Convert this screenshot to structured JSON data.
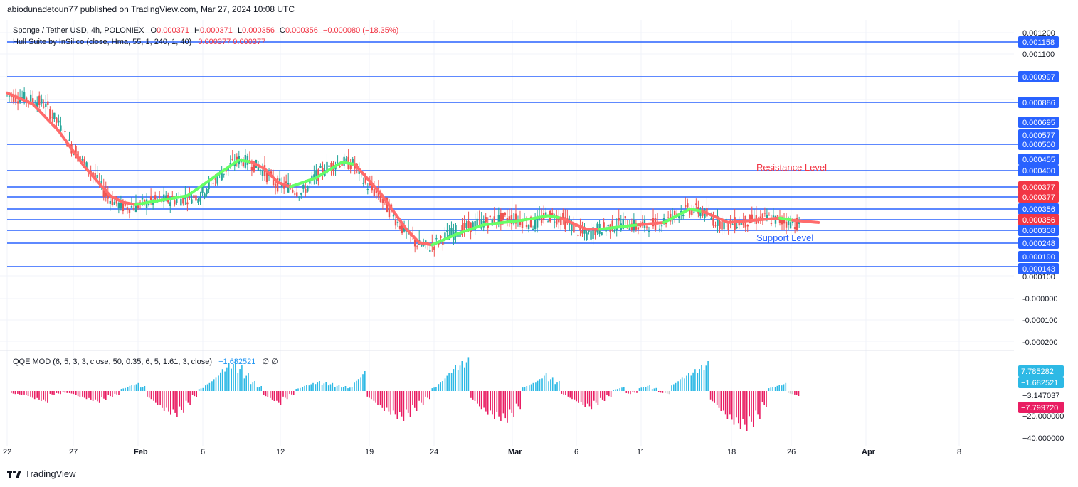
{
  "header": {
    "published_line": "abiodunadetoun77 published on TradingView.com, Mar 27, 2024 10:08 UTC"
  },
  "legend": {
    "symbol_line": "Sponge / Tether USD, 4h, POLONIEX",
    "ohlc": [
      {
        "label": "O",
        "value": "0.000371"
      },
      {
        "label": "H",
        "value": "0.000371"
      },
      {
        "label": "L",
        "value": "0.000356"
      },
      {
        "label": "C",
        "value": "0.000356"
      }
    ],
    "change": "−0.000080 (−18.35%)",
    "indicator_line": "Hull Suite by InSilico (close, Hma, 55, 1, 240, 1, 40)",
    "indicator_values": "0.000377  0.000377",
    "qqe_line": "QQE MOD (6, 5, 3, 3, close, 50, 0.35, 6, 5, 1.61, 3, close)",
    "qqe_value": "−1.682521",
    "qqe_extra": "∅  ∅"
  },
  "annotations": {
    "resistance": "Resistance Level",
    "support": "Support Level"
  },
  "colors": {
    "hline": "#2962ff",
    "bull": "#26a69a",
    "bear": "#ef5350",
    "hull_up": "#66ff66",
    "hull_down": "#ff6b6b",
    "qqe_up": "#2db9e5",
    "qqe_down": "#e91e63",
    "qqe_neutral": "#c8c8c8",
    "legend_red": "#f23645"
  },
  "footer": {
    "brand": "TradingView"
  },
  "chart_data": {
    "type": "candlestick",
    "x_tick_labels": [
      "22",
      "27",
      "Feb",
      "6",
      "12",
      "19",
      "24",
      "Mar",
      "6",
      "11",
      "18",
      "26",
      "Apr",
      "8"
    ],
    "price_axis_ticks": [
      "0.001200",
      "0.001100",
      "0.000100",
      "-0.000000",
      "-0.000100",
      "-0.000200"
    ],
    "horizontal_levels": [
      "0.001158",
      "0.000997",
      "0.000886",
      "0.000695",
      "0.000577",
      "0.000500",
      "0.000455",
      "0.000400",
      "0.000377",
      "0.000377",
      "0.000356",
      "0.000356",
      "0.000308",
      "0.000248",
      "0.000190",
      "0.000143"
    ],
    "highlighted_levels": [
      "0.000377",
      "0.000377",
      "0.000356"
    ],
    "price_series": [
      {
        "d": 0,
        "p": 0.00092
      },
      {
        "d": 2,
        "p": 0.0009
      },
      {
        "d": 3,
        "p": 0.00088
      },
      {
        "d": 4,
        "p": 0.0008
      },
      {
        "d": 5,
        "p": 0.0007
      },
      {
        "d": 6,
        "p": 0.00062
      },
      {
        "d": 7,
        "p": 0.00055
      },
      {
        "d": 8,
        "p": 0.00046
      },
      {
        "d": 9,
        "p": 0.00042
      },
      {
        "d": 10,
        "p": 0.00042
      },
      {
        "d": 11,
        "p": 0.00044
      },
      {
        "d": 12,
        "p": 0.00045
      },
      {
        "d": 13,
        "p": 0.00045
      },
      {
        "d": 14,
        "p": 0.00046
      },
      {
        "d": 15,
        "p": 0.00047
      },
      {
        "d": 16,
        "p": 0.00053
      },
      {
        "d": 17,
        "p": 0.00058
      },
      {
        "d": 18,
        "p": 0.00063
      },
      {
        "d": 19,
        "p": 0.00062
      },
      {
        "d": 20,
        "p": 0.00058
      },
      {
        "d": 21,
        "p": 0.00052
      },
      {
        "d": 22,
        "p": 0.00051
      },
      {
        "d": 23,
        "p": 0.00048
      },
      {
        "d": 24,
        "p": 0.00055
      },
      {
        "d": 25,
        "p": 0.0006
      },
      {
        "d": 26,
        "p": 0.00062
      },
      {
        "d": 27,
        "p": 0.00061
      },
      {
        "d": 28,
        "p": 0.00052
      },
      {
        "d": 29,
        "p": 0.00047
      },
      {
        "d": 30,
        "p": 0.00039
      },
      {
        "d": 31,
        "p": 0.00031
      },
      {
        "d": 32,
        "p": 0.00025
      },
      {
        "d": 33,
        "p": 0.00024
      },
      {
        "d": 34,
        "p": 0.00028
      },
      {
        "d": 35,
        "p": 0.00031
      },
      {
        "d": 36,
        "p": 0.00033
      },
      {
        "d": 37,
        "p": 0.00035
      },
      {
        "d": 38,
        "p": 0.00036
      },
      {
        "d": 39,
        "p": 0.00037
      },
      {
        "d": 40,
        "p": 0.00036
      },
      {
        "d": 41,
        "p": 0.00034
      },
      {
        "d": 42,
        "p": 0.00038
      },
      {
        "d": 43,
        "p": 0.00037
      },
      {
        "d": 44,
        "p": 0.00033
      },
      {
        "d": 45,
        "p": 0.00029
      },
      {
        "d": 46,
        "p": 0.00032
      },
      {
        "d": 47,
        "p": 0.00033
      },
      {
        "d": 48,
        "p": 0.00035
      },
      {
        "d": 49,
        "p": 0.00033
      },
      {
        "d": 50,
        "p": 0.00034
      },
      {
        "d": 51,
        "p": 0.00035
      },
      {
        "d": 52,
        "p": 0.00039
      },
      {
        "d": 53,
        "p": 0.00041
      },
      {
        "d": 54,
        "p": 0.0004
      },
      {
        "d": 55,
        "p": 0.00036
      },
      {
        "d": 56,
        "p": 0.00034
      },
      {
        "d": 57,
        "p": 0.00035
      },
      {
        "d": 58,
        "p": 0.00036
      },
      {
        "d": 59,
        "p": 0.00037
      },
      {
        "d": 60,
        "p": 0.00036
      },
      {
        "d": 61,
        "p": 0.00035
      },
      {
        "d": 62,
        "p": 0.00034
      },
      {
        "d": 63,
        "p": 0.00036
      }
    ],
    "hull_series": [
      {
        "d": 0,
        "p": 0.00093,
        "dir": "down"
      },
      {
        "d": 2,
        "p": 0.00088,
        "dir": "down"
      },
      {
        "d": 4,
        "p": 0.00076,
        "dir": "down"
      },
      {
        "d": 6,
        "p": 0.0006,
        "dir": "down"
      },
      {
        "d": 8,
        "p": 0.00047,
        "dir": "down"
      },
      {
        "d": 9,
        "p": 0.00044,
        "dir": "down"
      },
      {
        "d": 10,
        "p": 0.00043,
        "dir": "up"
      },
      {
        "d": 12,
        "p": 0.00045,
        "dir": "up"
      },
      {
        "d": 14,
        "p": 0.00047,
        "dir": "up"
      },
      {
        "d": 16,
        "p": 0.00055,
        "dir": "up"
      },
      {
        "d": 18,
        "p": 0.00063,
        "dir": "up"
      },
      {
        "d": 19,
        "p": 0.00062,
        "dir": "down"
      },
      {
        "d": 20,
        "p": 0.00059,
        "dir": "down"
      },
      {
        "d": 21,
        "p": 0.00053,
        "dir": "down"
      },
      {
        "d": 22,
        "p": 0.00051,
        "dir": "up"
      },
      {
        "d": 24,
        "p": 0.00055,
        "dir": "up"
      },
      {
        "d": 26,
        "p": 0.00062,
        "dir": "up"
      },
      {
        "d": 27,
        "p": 0.00061,
        "dir": "down"
      },
      {
        "d": 29,
        "p": 0.00048,
        "dir": "down"
      },
      {
        "d": 31,
        "p": 0.00032,
        "dir": "down"
      },
      {
        "d": 32,
        "p": 0.00026,
        "dir": "down"
      },
      {
        "d": 33,
        "p": 0.00025,
        "dir": "up"
      },
      {
        "d": 35,
        "p": 0.0003,
        "dir": "up"
      },
      {
        "d": 37,
        "p": 0.00034,
        "dir": "up"
      },
      {
        "d": 40,
        "p": 0.00036,
        "dir": "up"
      },
      {
        "d": 42,
        "p": 0.00038,
        "dir": "up"
      },
      {
        "d": 43,
        "p": 0.00037,
        "dir": "down"
      },
      {
        "d": 45,
        "p": 0.00032,
        "dir": "down"
      },
      {
        "d": 46,
        "p": 0.00032,
        "dir": "up"
      },
      {
        "d": 49,
        "p": 0.00034,
        "dir": "down"
      },
      {
        "d": 51,
        "p": 0.00035,
        "dir": "up"
      },
      {
        "d": 53,
        "p": 0.00041,
        "dir": "up"
      },
      {
        "d": 54,
        "p": 0.0004,
        "dir": "down"
      },
      {
        "d": 56,
        "p": 0.00035,
        "dir": "down"
      },
      {
        "d": 58,
        "p": 0.00036,
        "dir": "down"
      },
      {
        "d": 60,
        "p": 0.00037,
        "dir": "up"
      },
      {
        "d": 61,
        "p": 0.00036,
        "dir": "down"
      },
      {
        "d": 63,
        "p": 0.00035,
        "dir": "down"
      }
    ],
    "qqe_panel": {
      "axis_ticks": [
        "−3.147037",
        "−20.000000",
        "−40.000000"
      ],
      "value_labels": [
        {
          "text": "7.785282",
          "kind": "up"
        },
        {
          "text": "−1.682521",
          "kind": "up"
        },
        {
          "text": "−7.799720",
          "kind": "down"
        }
      ],
      "histogram": [
        -3,
        -4,
        -5,
        -8,
        -10,
        -12,
        -4,
        -3,
        -2,
        -3,
        -6,
        -8,
        -10,
        -12,
        -9,
        -6,
        -4,
        3,
        6,
        8,
        5,
        -8,
        -14,
        -20,
        -24,
        -26,
        -22,
        -14,
        -6,
        3,
        8,
        14,
        22,
        28,
        32,
        26,
        18,
        10,
        5,
        -6,
        -10,
        -14,
        -8,
        -4,
        3,
        6,
        8,
        10,
        9,
        8,
        6,
        5,
        4,
        12,
        20,
        -8,
        -14,
        -20,
        -24,
        -28,
        -30,
        -26,
        -20,
        -14,
        -8,
        4,
        10,
        18,
        26,
        30,
        34,
        -10,
        -18,
        -24,
        -28,
        -30,
        -32,
        -26,
        -18,
        5,
        8,
        12,
        18,
        14,
        10,
        -4,
        -8,
        -12,
        -16,
        -18,
        -14,
        -10,
        -6,
        2,
        4,
        -3,
        -2,
        4,
        6,
        3,
        -2,
        -3,
        8,
        14,
        18,
        22,
        26,
        30,
        -12,
        -20,
        -28,
        -34,
        -38,
        -40,
        -36,
        -28,
        -16,
        4,
        6,
        8,
        -3,
        -5,
        -6
      ]
    }
  }
}
